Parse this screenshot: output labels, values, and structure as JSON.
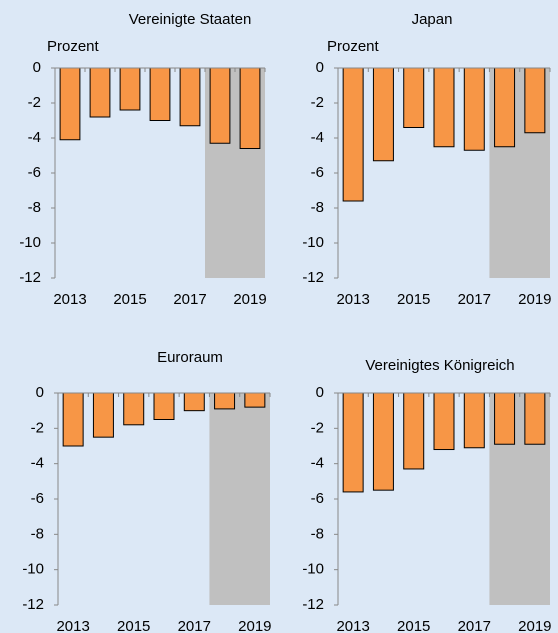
{
  "chart_data": [
    {
      "type": "bar",
      "title": "Vereinigte Staaten",
      "ylabel": "Prozent",
      "categories": [
        "2013",
        null,
        "2015",
        null,
        "2017",
        null,
        "2019"
      ],
      "values": [
        -4.1,
        -2.8,
        -2.4,
        -3.0,
        -3.3,
        -4.3,
        -4.6
      ],
      "color": "#f79646",
      "ylim": [
        -12,
        0
      ],
      "yticks": [
        0,
        -2,
        -4,
        -6,
        -8,
        -10,
        -12
      ]
    },
    {
      "type": "bar",
      "title": "Japan",
      "ylabel": "Prozent",
      "categories": [
        "2013",
        null,
        "2015",
        null,
        "2017",
        null,
        "2019"
      ],
      "values": [
        -7.6,
        -5.3,
        -3.4,
        -4.5,
        -4.7,
        -4.5,
        -3.7
      ],
      "color": "#f79646",
      "ylim": [
        -12,
        0
      ],
      "yticks": [
        0,
        -2,
        -4,
        -6,
        -8,
        -10,
        -12
      ]
    },
    {
      "type": "bar",
      "title": "Euroraum",
      "categories": [
        "2013",
        null,
        "2015",
        null,
        "2017",
        null,
        "2019"
      ],
      "values": [
        -3.0,
        -2.5,
        -1.8,
        -1.5,
        -1.0,
        -0.9,
        -0.8
      ],
      "color": "#f79646",
      "ylim": [
        -12,
        0
      ],
      "yticks": [
        0,
        -2,
        -4,
        -6,
        -8,
        -10,
        -12
      ]
    },
    {
      "type": "bar",
      "title": "Vereinigtes Königreich",
      "categories": [
        "2013",
        null,
        "2015",
        null,
        "2017",
        null,
        "2019"
      ],
      "values": [
        -5.6,
        -5.5,
        -4.3,
        -3.2,
        -3.1,
        -2.9,
        -2.9
      ],
      "color": "#f79646",
      "ylim": [
        -12,
        0
      ],
      "yticks": [
        0,
        -2,
        -4,
        -6,
        -8,
        -10,
        -12
      ]
    }
  ]
}
